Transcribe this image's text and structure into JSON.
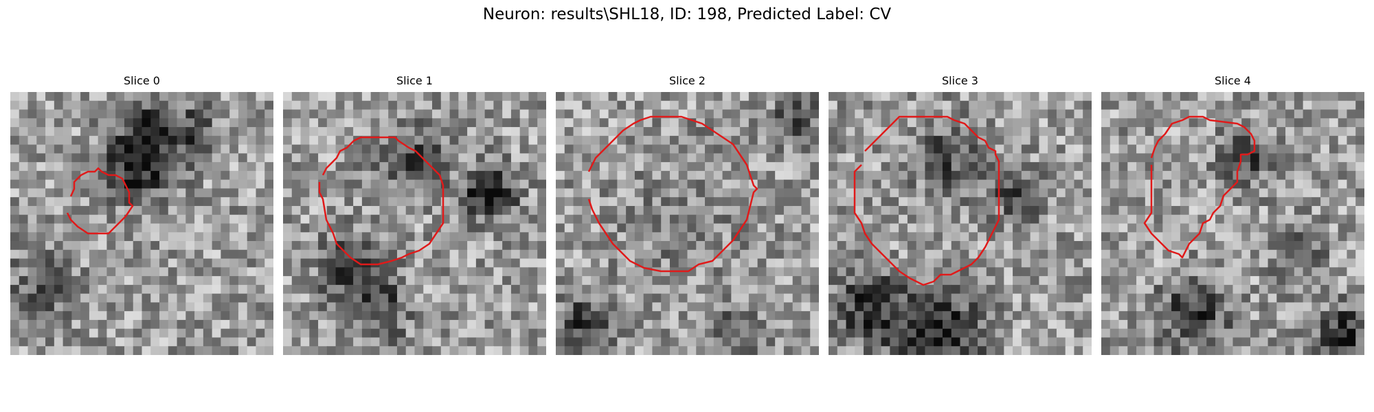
{
  "figure": {
    "suptitle": "Neuron: results\\SHL18, ID: 198, Predicted Label: CV",
    "outline_color": "#e01a1a",
    "panels": [
      {
        "title": "Slice 0"
      },
      {
        "title": "Slice 1"
      },
      {
        "title": "Slice 2"
      },
      {
        "title": "Slice 3"
      },
      {
        "title": "Slice 4"
      }
    ]
  }
}
